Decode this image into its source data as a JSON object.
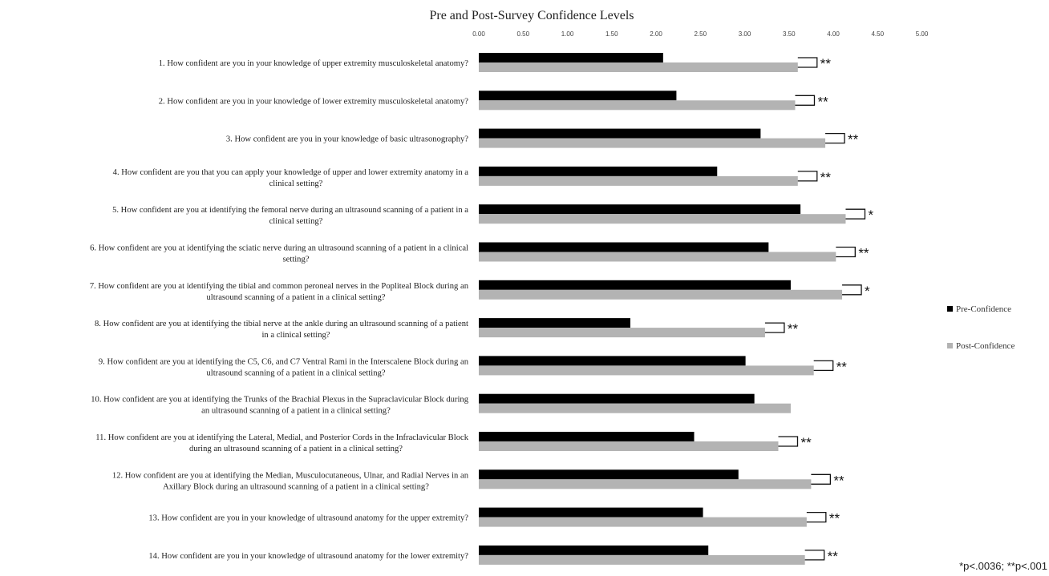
{
  "colors": {
    "pre": "#000000",
    "post": "#b3b3b3",
    "text": "#222222",
    "bracket": "#111111"
  },
  "chart_data": {
    "type": "bar",
    "orientation": "horizontal",
    "title": "Pre and Post-Survey Confidence Levels",
    "xlim": [
      0,
      5
    ],
    "xticks": [
      "0.00",
      "0.50",
      "1.00",
      "1.50",
      "2.00",
      "2.50",
      "3.00",
      "3.50",
      "4.00",
      "4.50",
      "5.00"
    ],
    "grid": false,
    "legend_position": "right",
    "categories": [
      [
        "1. How confident are you in your knowledge of upper extremity musculoskeletal anatomy?"
      ],
      [
        "2. How confident are you in your knowledge of lower extremity musculoskeletal anatomy?"
      ],
      [
        "3. How confident are you in your knowledge of basic ultrasonography?"
      ],
      [
        "4. How confident are you that you can apply your knowledge of upper and lower extremity anatomy in a",
        "clinical setting?"
      ],
      [
        "5. How confident are you at identifying the femoral nerve during an ultrasound scanning of a patient in a",
        "clinical setting?"
      ],
      [
        "6. How confident are you at identifying the sciatic nerve during an ultrasound scanning of a patient in a clinical",
        "setting?"
      ],
      [
        "7. How confident are you at identifying the tibial and common peroneal nerves in the Popliteal Block during an",
        "ultrasound scanning of a patient in a clinical setting?"
      ],
      [
        "8. How confident are you at identifying the tibial nerve at the ankle during an ultrasound scanning of a patient",
        "in a clinical setting?"
      ],
      [
        "9. How confident are you at identifying the C5, C6, and C7 Ventral Rami in the Interscalene Block during an",
        "ultrasound scanning of a patient in a clinical setting?"
      ],
      [
        "10. How confident are you at identifying the Trunks of the Brachial Plexus in the Supraclavicular Block during",
        "an ultrasound scanning of a patient in a clinical setting?"
      ],
      [
        "11. How confident are you at identifying the Lateral, Medial, and Posterior Cords in the Infraclavicular Block",
        "during an ultrasound scanning of a patient in a clinical setting?"
      ],
      [
        "12. How confident are you at identifying the Median, Musculocutaneous, Ulnar, and Radial Nerves in an",
        "Axillary Block during an ultrasound scanning of a patient in a clinical setting?"
      ],
      [
        "13. How confident are you in your knowledge of ultrasound anatomy for the upper extremity?"
      ],
      [
        "14. How confident are you in your knowledge of ultrasound anatomy for the lower extremity?"
      ]
    ],
    "series": [
      {
        "name": "Pre-Confidence",
        "values": [
          2.08,
          2.23,
          3.18,
          2.69,
          3.63,
          3.27,
          3.52,
          1.71,
          3.01,
          3.11,
          2.43,
          2.93,
          2.53,
          2.59
        ]
      },
      {
        "name": "Post-Confidence",
        "values": [
          3.6,
          3.57,
          3.91,
          3.6,
          4.14,
          4.03,
          4.1,
          3.23,
          3.78,
          3.52,
          3.38,
          3.75,
          3.7,
          3.68
        ]
      }
    ],
    "significance": [
      "**",
      "**",
      "**",
      "**",
      "*",
      "**",
      "*",
      "**",
      "**",
      "",
      "**",
      "**",
      "**",
      "**"
    ],
    "footnote": "*p<.0036; **p<.001"
  }
}
